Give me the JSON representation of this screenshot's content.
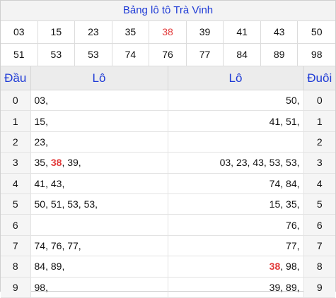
{
  "title": "Bảng lô tô Trà Vinh",
  "loto_numbers": [
    "03",
    "15",
    "23",
    "35",
    "38",
    "39",
    "41",
    "43",
    "50",
    "51",
    "53",
    "53",
    "74",
    "76",
    "77",
    "84",
    "89",
    "98"
  ],
  "highlight": "38",
  "headers": {
    "dau": "Đầu",
    "lo_left": "Lô",
    "lo_right": "Lô",
    "duoi": "Đuôi"
  },
  "rows": [
    {
      "dau": "0",
      "lo_dau": [
        "03"
      ],
      "lo_duoi": [
        "50"
      ],
      "duoi": "0"
    },
    {
      "dau": "1",
      "lo_dau": [
        "15"
      ],
      "lo_duoi": [
        "41",
        "51"
      ],
      "duoi": "1"
    },
    {
      "dau": "2",
      "lo_dau": [
        "23"
      ],
      "lo_duoi": [],
      "duoi": "2"
    },
    {
      "dau": "3",
      "lo_dau": [
        "35",
        "38",
        "39"
      ],
      "lo_duoi": [
        "03",
        "23",
        "43",
        "53",
        "53"
      ],
      "duoi": "3"
    },
    {
      "dau": "4",
      "lo_dau": [
        "41",
        "43"
      ],
      "lo_duoi": [
        "74",
        "84"
      ],
      "duoi": "4"
    },
    {
      "dau": "5",
      "lo_dau": [
        "50",
        "51",
        "53",
        "53"
      ],
      "lo_duoi": [
        "15",
        "35"
      ],
      "duoi": "5"
    },
    {
      "dau": "6",
      "lo_dau": [],
      "lo_duoi": [
        "76"
      ],
      "duoi": "6"
    },
    {
      "dau": "7",
      "lo_dau": [
        "74",
        "76",
        "77"
      ],
      "lo_duoi": [
        "77"
      ],
      "duoi": "7"
    },
    {
      "dau": "8",
      "lo_dau": [
        "84",
        "89"
      ],
      "lo_duoi": [
        "38",
        "98"
      ],
      "duoi": "8"
    },
    {
      "dau": "9",
      "lo_dau": [
        "98"
      ],
      "lo_duoi": [
        "39",
        "89"
      ],
      "duoi": "9"
    }
  ],
  "colors": {
    "title_blue": "#1f3bd6",
    "highlight_red": "#e23b3b"
  }
}
